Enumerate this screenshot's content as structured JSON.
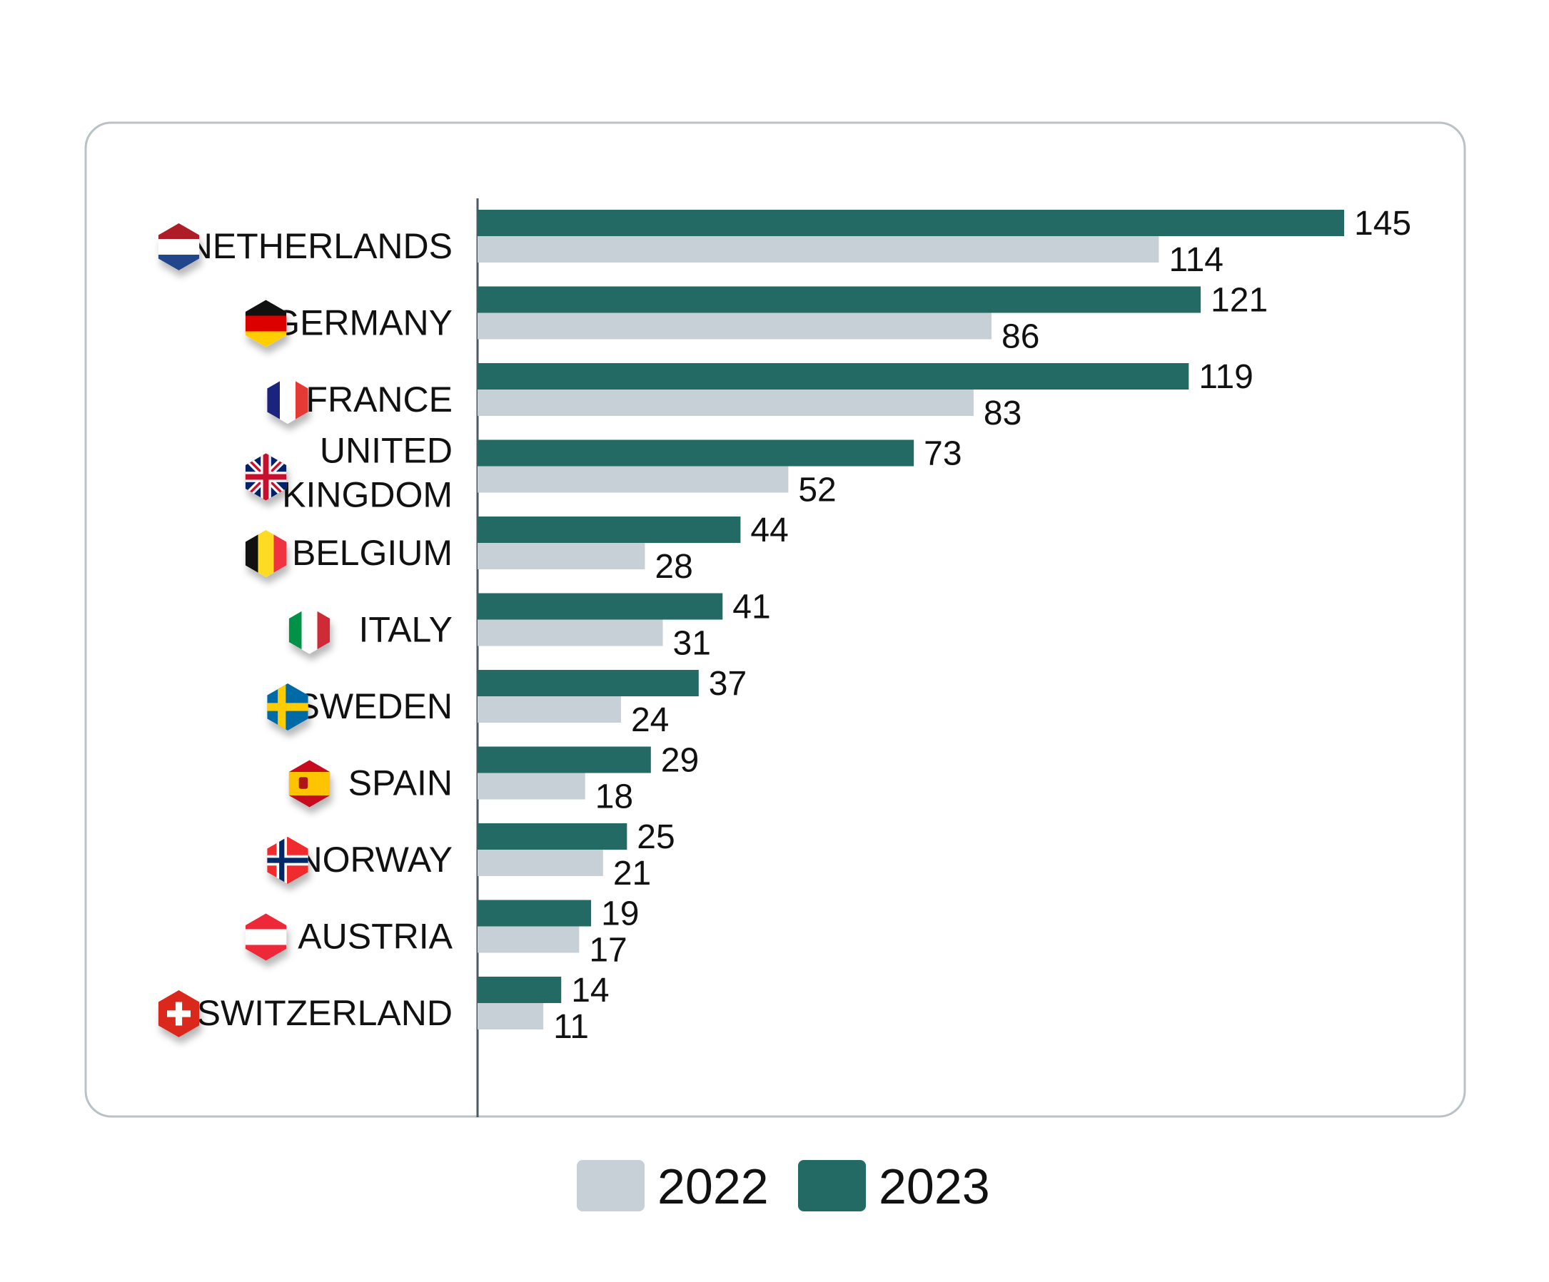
{
  "chart_data": {
    "type": "bar",
    "orientation": "horizontal",
    "categories": [
      "NETHERLANDS",
      "GERMANY",
      "FRANCE",
      "UNITED KINGDOM",
      "BELGIUM",
      "ITALY",
      "SWEDEN",
      "SPAIN",
      "NORWAY",
      "AUSTRIA",
      "SWITZERLAND"
    ],
    "series": [
      {
        "name": "2023",
        "color": "#226a63",
        "values": [
          145,
          121,
          119,
          73,
          44,
          41,
          37,
          29,
          25,
          19,
          14
        ]
      },
      {
        "name": "2022",
        "color": "#c6d0d6",
        "values": [
          114,
          86,
          83,
          52,
          28,
          31,
          24,
          18,
          21,
          17,
          11
        ]
      }
    ],
    "legend": {
      "placement": "bottom-center",
      "order": [
        "2022",
        "2023"
      ]
    },
    "xlim": [
      0,
      150
    ],
    "grid": false,
    "title": "",
    "xlabel": "",
    "ylabel": ""
  },
  "flags": [
    "netherlands-flag-icon",
    "germany-flag-icon",
    "france-flag-icon",
    "united-kingdom-flag-icon",
    "belgium-flag-icon",
    "italy-flag-icon",
    "sweden-flag-icon",
    "spain-flag-icon",
    "norway-flag-icon",
    "austria-flag-icon",
    "switzerland-flag-icon"
  ],
  "colors": {
    "frame": "#b9c2c6",
    "axis": "#4a5a60"
  }
}
